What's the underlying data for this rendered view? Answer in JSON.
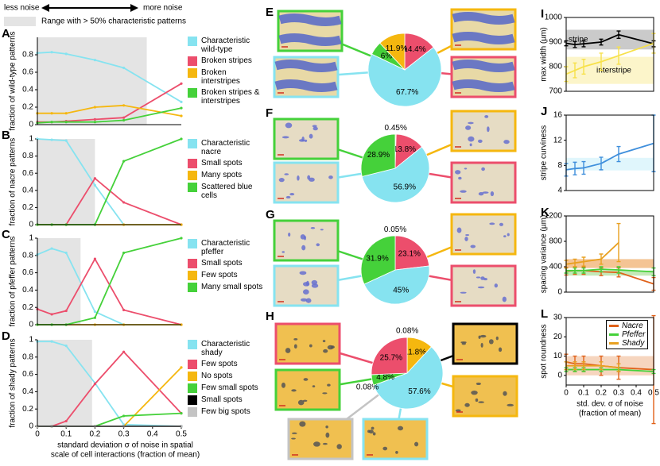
{
  "header": {
    "less": "less noise",
    "more": "more noise",
    "range_note": "Range with > 50% characteristic patterns"
  },
  "chart_data": [
    {
      "type": "line",
      "label": "A",
      "ylabel": "fraction of wild-type patterns",
      "x": [
        0,
        0.05,
        0.1,
        0.2,
        0.3,
        0.5
      ],
      "xlim": [
        0,
        0.5
      ],
      "ylim": [
        0,
        1
      ],
      "yticks": [
        0,
        0.2,
        0.4,
        0.6,
        0.8
      ],
      "shade": [
        0,
        0.38
      ],
      "series": [
        {
          "name": "Characteristic wild-type",
          "color": "#86e3f0",
          "values": [
            0.82,
            0.83,
            0.81,
            0.74,
            0.65,
            0.26
          ]
        },
        {
          "name": "Broken stripes",
          "color": "#ec4e6c",
          "values": [
            0.03,
            0.03,
            0.04,
            0.06,
            0.08,
            0.47
          ]
        },
        {
          "name": "Broken interstripes",
          "color": "#f5b70f",
          "values": [
            0.13,
            0.13,
            0.13,
            0.2,
            0.22,
            0.1
          ]
        },
        {
          "name": "Broken stripes & interstripes",
          "color": "#45d13a",
          "values": [
            0.02,
            0.03,
            0.03,
            0.03,
            0.05,
            0.19
          ]
        }
      ]
    },
    {
      "type": "line",
      "label": "B",
      "ylabel": "fraction of nacre patterns",
      "x": [
        0,
        0.05,
        0.1,
        0.2,
        0.3,
        0.5
      ],
      "xlim": [
        0,
        0.5
      ],
      "ylim": [
        0,
        1
      ],
      "yticks": [
        0,
        0.2,
        0.4,
        0.6,
        0.8,
        1
      ],
      "shade": [
        0,
        0.2
      ],
      "series": [
        {
          "name": "Characteristic nacre",
          "color": "#86e3f0",
          "values": [
            1,
            0.99,
            0.98,
            0.46,
            0,
            0
          ]
        },
        {
          "name": "Small spots",
          "color": "#ec4e6c",
          "values": [
            0,
            0,
            0,
            0.54,
            0.26,
            0
          ]
        },
        {
          "name": "Many spots",
          "color": "#f5b70f",
          "values": [
            0,
            0,
            0,
            0,
            0,
            0
          ]
        },
        {
          "name": "Scattered blue cells",
          "color": "#45d13a",
          "values": [
            0,
            0,
            0,
            0,
            0.74,
            1
          ]
        }
      ]
    },
    {
      "type": "line",
      "label": "C",
      "ylabel": "fraction of pfeffer patterns",
      "x": [
        0,
        0.05,
        0.1,
        0.2,
        0.3,
        0.5
      ],
      "xlim": [
        0,
        0.5
      ],
      "ylim": [
        0,
        1
      ],
      "yticks": [
        0,
        0.2,
        0.4,
        0.6,
        0.8,
        1
      ],
      "shade": [
        0,
        0.15
      ],
      "series": [
        {
          "name": "Characteristic pfeffer",
          "color": "#86e3f0",
          "values": [
            0.81,
            0.88,
            0.83,
            0.15,
            0,
            0
          ]
        },
        {
          "name": "Small spots",
          "color": "#ec4e6c",
          "values": [
            0.18,
            0.12,
            0.16,
            0.76,
            0.17,
            0
          ]
        },
        {
          "name": "Few spots",
          "color": "#f5b70f",
          "values": [
            0,
            0,
            0,
            0,
            0,
            0
          ]
        },
        {
          "name": "Many small spots",
          "color": "#45d13a",
          "values": [
            0,
            0,
            0,
            0.08,
            0.83,
            1
          ]
        }
      ]
    },
    {
      "type": "line",
      "label": "D",
      "ylabel": "fraction of shady patterns",
      "xlabel": [
        "standard deviation σ of noise in spatial",
        "scale of cell interactions (fraction of mean)"
      ],
      "x": [
        0,
        0.05,
        0.1,
        0.2,
        0.3,
        0.5
      ],
      "xlim": [
        0,
        0.5
      ],
      "xticks": [
        0,
        0.1,
        0.2,
        0.3,
        0.4,
        0.5
      ],
      "ylim": [
        0,
        1
      ],
      "yticks": [
        0,
        0.2,
        0.4,
        0.6,
        0.8,
        1
      ],
      "shade": [
        0,
        0.19
      ],
      "series": [
        {
          "name": "Characteristic shady",
          "color": "#86e3f0",
          "values": [
            0.98,
            0.98,
            0.93,
            0.5,
            0.02,
            0
          ]
        },
        {
          "name": "Few spots",
          "color": "#ec4e6c",
          "values": [
            0,
            0,
            0.06,
            0.49,
            0.86,
            0.15
          ]
        },
        {
          "name": "No spots",
          "color": "#f5b70f",
          "values": [
            0,
            0,
            0,
            0,
            0,
            0.68
          ]
        },
        {
          "name": "Few small spots",
          "color": "#45d13a",
          "values": [
            0,
            0,
            0,
            0,
            0.12,
            0.15
          ]
        },
        {
          "name": "Small spots",
          "color": "#000000",
          "values": [
            0,
            0,
            0,
            0,
            0,
            0
          ]
        },
        {
          "name": "Few big spots",
          "color": "#c4c4c4",
          "values": [
            0,
            0,
            0,
            0,
            0,
            0
          ]
        }
      ]
    },
    {
      "type": "pie",
      "label": "E",
      "values": [
        14.4,
        67.7,
        6,
        11.9
      ],
      "value_labels": [
        "14.4%",
        "67.7%",
        "6%",
        "11.9%"
      ],
      "colors": [
        "#ec4e6c",
        "#86e3f0",
        "#45d13a",
        "#f5b70f"
      ]
    },
    {
      "type": "pie",
      "label": "F",
      "values": [
        0.45,
        13.8,
        56.9,
        28.9
      ],
      "value_labels": [
        "0.45%",
        "13.8%",
        "56.9%",
        "28.9%"
      ],
      "colors": [
        "#f5b70f",
        "#ec4e6c",
        "#86e3f0",
        "#45d13a"
      ]
    },
    {
      "type": "pie",
      "label": "G",
      "values": [
        0.05,
        23.1,
        45,
        31.9
      ],
      "value_labels": [
        "0.05%",
        "23.1%",
        "45%",
        "31.9%"
      ],
      "colors": [
        "#f5b70f",
        "#ec4e6c",
        "#86e3f0",
        "#45d13a"
      ]
    },
    {
      "type": "pie",
      "label": "H",
      "values": [
        0.08,
        11.8,
        57.6,
        0.08,
        4.8,
        25.7
      ],
      "value_labels": [
        "0.08%",
        "11.8%",
        "57.6%",
        "0.08%",
        "4.8%",
        "25.7%"
      ],
      "colors": [
        "#000000",
        "#f5b70f",
        "#86e3f0",
        "#c4c4c4",
        "#45d13a",
        "#ec4e6c"
      ]
    },
    {
      "type": "line",
      "label": "I",
      "ylabel": "max width (µm)",
      "x": [
        0,
        0.05,
        0.1,
        0.2,
        0.3,
        0.5
      ],
      "xlim": [
        0,
        0.5
      ],
      "ylim": [
        700,
        1000
      ],
      "yticks": [
        700,
        800,
        900,
        1000
      ],
      "bands": [
        {
          "range": [
            870,
            950
          ],
          "color": "#b8b8b8",
          "label": "stripe"
        },
        {
          "range": [
            730,
            840
          ],
          "color": "#fbf2b8",
          "label": "interstripe"
        }
      ],
      "series": [
        {
          "name": "stripe",
          "color": "#000000",
          "values": [
            895,
            890,
            893,
            900,
            930,
            893
          ],
          "errors": [
            10,
            12,
            12,
            12,
            15,
            12
          ]
        },
        {
          "name": "interstripe",
          "color": "#f7e14a",
          "values": [
            770,
            785,
            800,
            820,
            845,
            895
          ],
          "errors": [
            30,
            30,
            30,
            35,
            35,
            40
          ]
        }
      ]
    },
    {
      "type": "line",
      "label": "J",
      "ylabel": "stripe curviness",
      "x": [
        0,
        0.05,
        0.1,
        0.2,
        0.3,
        0.5
      ],
      "xlim": [
        0,
        0.5
      ],
      "ylim": [
        4,
        16
      ],
      "yticks": [
        4,
        8,
        12,
        16
      ],
      "bands": [
        {
          "range": [
            7.2,
            9.2
          ],
          "color": "#d6f3fb"
        }
      ],
      "series": [
        {
          "name": "curviness",
          "color": "#3f8fdc",
          "values": [
            7.3,
            7.5,
            7.6,
            8.3,
            9.8,
            11.5
          ],
          "errors": [
            1,
            1,
            1,
            1,
            1.2,
            4.5
          ]
        }
      ]
    },
    {
      "type": "line",
      "label": "K",
      "ylabel": "spacing variance (µm)",
      "x": [
        0,
        0.05,
        0.1,
        0.2,
        0.3,
        0.5
      ],
      "xlim": [
        0,
        0.5
      ],
      "ylim": [
        0,
        1200
      ],
      "yticks": [
        0,
        400,
        800,
        1200
      ],
      "bands": [
        {
          "range": [
            380,
            520
          ],
          "color": "#f0b070"
        },
        {
          "range": [
            260,
            340
          ],
          "color": "#b0e2a0"
        }
      ],
      "series": [
        {
          "name": "Nacre",
          "color": "#e0621a",
          "values": [
            330,
            340,
            340,
            320,
            310,
            130
          ],
          "errors": [
            60,
            60,
            60,
            60,
            70,
            100
          ]
        },
        {
          "name": "Pfeffer",
          "color": "#45d13a",
          "values": [
            340,
            340,
            340,
            360,
            350,
            320
          ],
          "errors": [
            40,
            40,
            40,
            40,
            50,
            60
          ]
        },
        {
          "name": "Shady",
          "color": "#e8a020",
          "values": [
            440,
            460,
            480,
            520,
            780,
            null
          ],
          "errors": [
            60,
            60,
            70,
            80,
            300,
            null
          ]
        }
      ]
    },
    {
      "type": "line",
      "label": "L",
      "ylabel": "spot roundness",
      "xlabel": [
        "std. dev. σ of noise",
        "(fraction of mean)"
      ],
      "x": [
        0,
        0.05,
        0.1,
        0.2,
        0.3,
        0.5
      ],
      "xlim": [
        0,
        0.5
      ],
      "xticks": [
        0,
        0.1,
        0.2,
        0.3,
        0.4,
        0.5
      ],
      "ylim": [
        -5,
        30
      ],
      "yticks": [
        0,
        10,
        20,
        30
      ],
      "bands": [
        {
          "range": [
            0,
            10
          ],
          "color": "#f3c7a8"
        }
      ],
      "legend": true,
      "series": [
        {
          "name": "Nacre",
          "color": "#e0621a",
          "values": [
            7,
            6,
            6,
            5,
            4,
            3
          ],
          "errors": [
            4,
            4,
            4,
            5,
            6,
            28
          ]
        },
        {
          "name": "Pfeffer",
          "color": "#45d13a",
          "values": [
            3,
            3,
            3,
            3,
            3,
            2
          ],
          "errors": [
            1,
            1,
            1,
            1,
            1,
            1
          ]
        },
        {
          "name": "Shady",
          "color": "#e8a020",
          "values": [
            5,
            5,
            5,
            5,
            4,
            null
          ],
          "errors": [
            2,
            2,
            2,
            2,
            2,
            null
          ]
        }
      ]
    }
  ]
}
